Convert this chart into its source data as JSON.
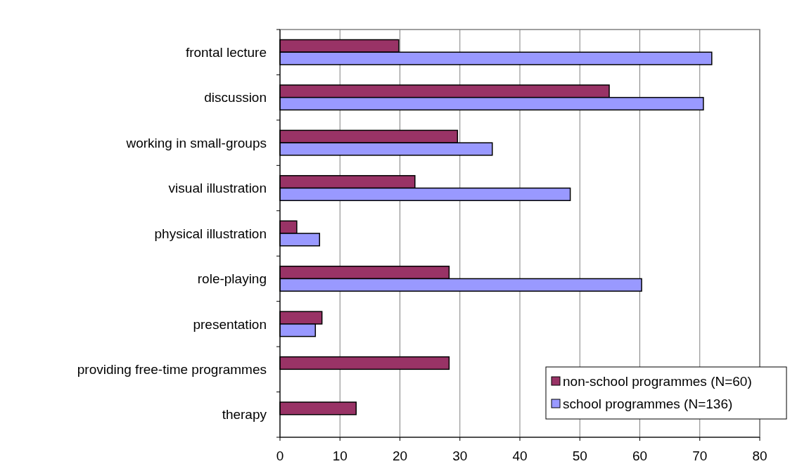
{
  "chart_data": {
    "type": "bar",
    "orientation": "horizontal",
    "categories": [
      "frontal lecture",
      "discussion",
      "working in small-groups",
      "visual illustration",
      "physical illustration",
      "role-playing",
      "presentation",
      "providing free-time programmes",
      "therapy"
    ],
    "series": [
      {
        "name": "non-school programmes (N=60)",
        "color": "#993366",
        "values": [
          19.8,
          54.9,
          29.6,
          22.5,
          2.8,
          28.2,
          7.0,
          28.2,
          12.7
        ]
      },
      {
        "name": "school programmes (N=136)",
        "color": "#9999ff",
        "values": [
          72.0,
          70.6,
          35.4,
          48.4,
          6.6,
          60.3,
          5.9,
          null,
          null
        ]
      }
    ],
    "xlim": [
      0,
      80
    ],
    "xticks": [
      0,
      10,
      20,
      30,
      40,
      50,
      60,
      70,
      80
    ],
    "grid": "x",
    "legend": "bottom right"
  }
}
